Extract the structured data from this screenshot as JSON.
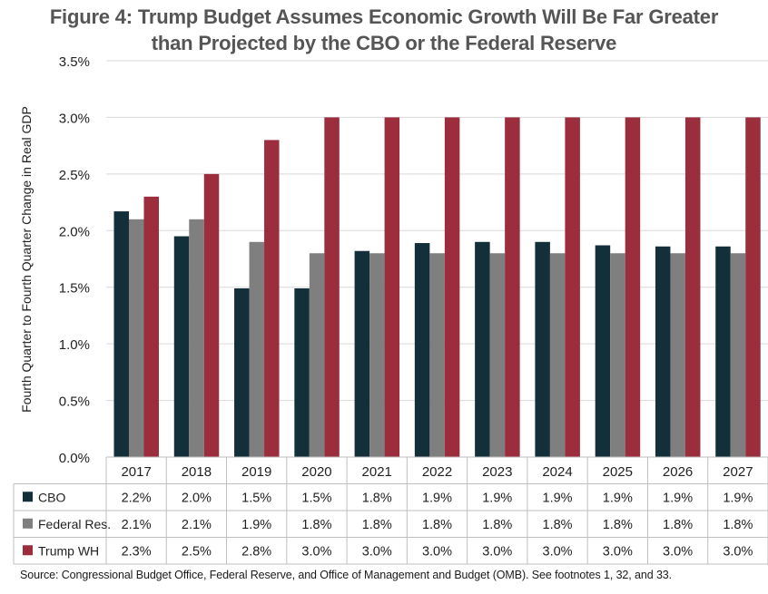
{
  "chart_data": {
    "type": "bar",
    "title_line1": "Figure 4: Trump Budget Assumes Economic Growth Will Be Far Greater",
    "title_line2": "than Projected by the CBO or the Federal Reserve",
    "ylabel": "Fourth Quarter to Fourth Quarter Change in Real GDP",
    "xlabel": "",
    "ylim": [
      0,
      3.5
    ],
    "yticks": [
      "0.0%",
      "0.5%",
      "1.0%",
      "1.5%",
      "2.0%",
      "2.5%",
      "3.0%",
      "3.5%"
    ],
    "grid": true,
    "categories": [
      "2017",
      "2018",
      "2019",
      "2020",
      "2021",
      "2022",
      "2023",
      "2024",
      "2025",
      "2026",
      "2027"
    ],
    "series": [
      {
        "name": "CBO",
        "color": "#13303a",
        "values": [
          2.17,
          1.95,
          1.49,
          1.49,
          1.82,
          1.89,
          1.9,
          1.9,
          1.87,
          1.86,
          1.86
        ],
        "labels": [
          "2.2%",
          "2.0%",
          "1.5%",
          "1.5%",
          "1.8%",
          "1.9%",
          "1.9%",
          "1.9%",
          "1.9%",
          "1.9%",
          "1.9%"
        ]
      },
      {
        "name": "Federal Res.",
        "color": "#7f7f7f",
        "values": [
          2.1,
          2.1,
          1.9,
          1.8,
          1.8,
          1.8,
          1.8,
          1.8,
          1.8,
          1.8,
          1.8
        ],
        "labels": [
          "2.1%",
          "2.1%",
          "1.9%",
          "1.8%",
          "1.8%",
          "1.8%",
          "1.8%",
          "1.8%",
          "1.8%",
          "1.8%",
          "1.8%"
        ]
      },
      {
        "name": "Trump WH",
        "color": "#9b2d3c",
        "values": [
          2.3,
          2.5,
          2.8,
          3.0,
          3.0,
          3.0,
          3.0,
          3.0,
          3.0,
          3.0,
          3.0
        ],
        "labels": [
          "2.3%",
          "2.5%",
          "2.8%",
          "3.0%",
          "3.0%",
          "3.0%",
          "3.0%",
          "3.0%",
          "3.0%",
          "3.0%",
          "3.0%"
        ]
      }
    ],
    "source": "Source: Congressional Budget Office, Federal Reserve, and Office of Management and Budget (OMB). See footnotes 1, 32, and 33."
  }
}
